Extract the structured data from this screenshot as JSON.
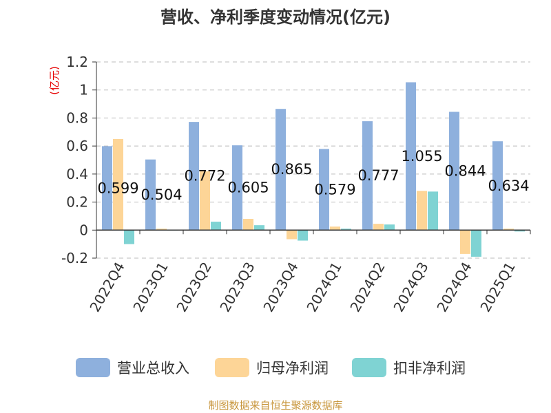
{
  "chart_data": {
    "type": "bar",
    "title": "营收、净利季度变动情况(亿元)",
    "ylabel": "(亿元)",
    "xlabel": "",
    "categories": [
      "2022Q4",
      "2023Q1",
      "2023Q2",
      "2023Q3",
      "2023Q4",
      "2024Q1",
      "2024Q2",
      "2024Q3",
      "2024Q4",
      "2025Q1"
    ],
    "series": [
      {
        "name": "营业总收入",
        "color": "#8EB0DD",
        "values": [
          0.599,
          0.504,
          0.772,
          0.605,
          0.865,
          0.579,
          0.777,
          1.055,
          0.844,
          0.634
        ],
        "labels": [
          "0.599",
          "0.504",
          "0.772",
          "0.605",
          "0.865",
          "0.579",
          "0.777",
          "1.055",
          "0.844",
          "0.634"
        ]
      },
      {
        "name": "归母净利润",
        "color": "#FDD597",
        "values": [
          0.65,
          0.01,
          0.42,
          0.08,
          -0.065,
          0.025,
          0.045,
          0.28,
          -0.17,
          0.01
        ]
      },
      {
        "name": "扣非净利润",
        "color": "#7FD3D3",
        "values": [
          -0.1,
          0.0,
          0.06,
          0.035,
          -0.075,
          0.01,
          0.04,
          0.275,
          -0.19,
          -0.01
        ]
      }
    ],
    "ylim": [
      -0.2,
      1.2
    ],
    "yticks": [
      -0.2,
      0,
      0.2,
      0.4,
      0.6,
      0.8,
      1,
      1.2
    ],
    "ytick_labels": [
      "-0.2",
      "0",
      "0.2",
      "0.4",
      "0.6",
      "0.8",
      "1",
      "1.2"
    ],
    "grid": true,
    "legend_position": "bottom",
    "source": "制图数据来自恒生聚源数据库"
  }
}
